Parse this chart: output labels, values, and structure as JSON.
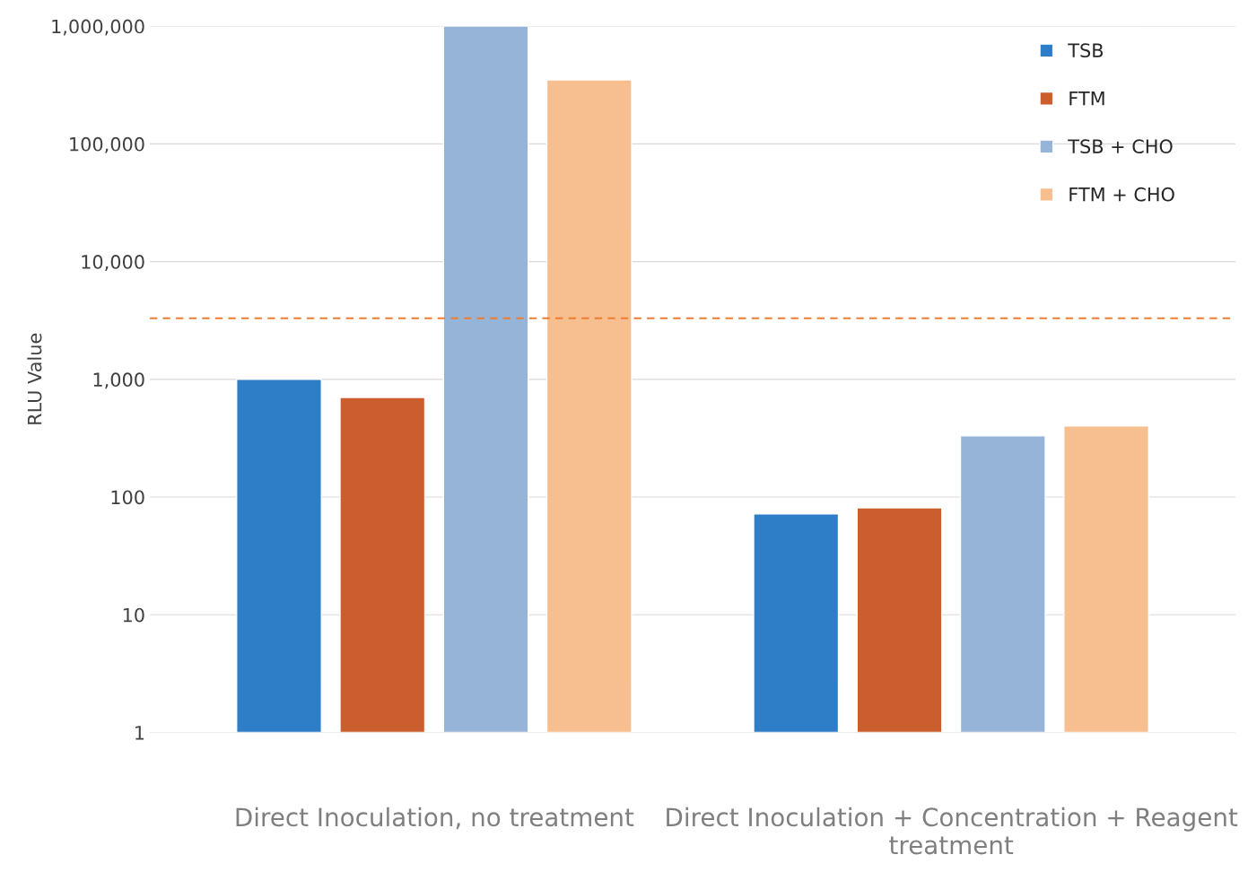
{
  "chart_data": {
    "type": "bar",
    "ylabel": "RLU Value",
    "categories": [
      "Direct Inoculation, no treatment",
      "Direct Inoculation + Concentration + Reagent treatment"
    ],
    "series": [
      {
        "name": "TSB",
        "color": "#2e7ec7",
        "values": [
          1000,
          71
        ]
      },
      {
        "name": "FTM",
        "color": "#cb5e2e",
        "values": [
          700,
          80
        ]
      },
      {
        "name": "TSB + CHO",
        "color": "#96b3d8",
        "values": [
          1000000,
          330
        ]
      },
      {
        "name": "FTM + CHO",
        "color": "#f7be8f",
        "values": [
          350000,
          400
        ]
      }
    ],
    "log": true,
    "ylim": [
      1,
      1000000
    ],
    "yticks": [
      1,
      10,
      100,
      {
        "value": 1000,
        "label": "1,000"
      },
      {
        "value": 10000,
        "label": "10,000"
      },
      {
        "value": 100000,
        "label": "100,000"
      },
      {
        "value": 1000000,
        "label": "1,000,000"
      }
    ],
    "ref_lines": [
      {
        "axis": "y",
        "value": 3300,
        "color": "#ed7d31",
        "line_style": "dashed"
      }
    ],
    "grid": "y",
    "legend": "top right"
  }
}
